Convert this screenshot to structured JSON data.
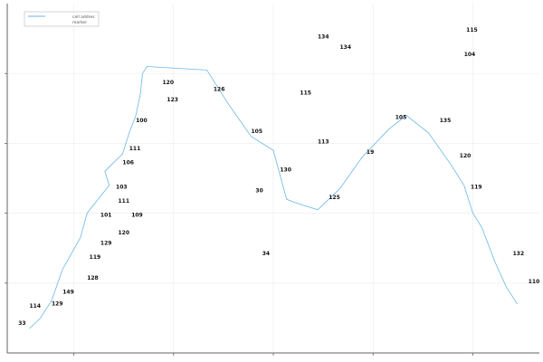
{
  "colors": {
    "series_line": "#6bb6e6",
    "marker_label": "#111111",
    "grid": "#ececec",
    "axis": "#666666",
    "legend_border": "#bbbbbb"
  },
  "legend": {
    "entries": [
      "cell addres",
      "marker"
    ],
    "placement": "top-left"
  },
  "chart_data": {
    "type": "line",
    "title": "",
    "xlabel": "",
    "ylabel": "",
    "xlim": [
      0,
      24
    ],
    "ylim": [
      0,
      50
    ],
    "x_ticks": [
      3,
      7.5,
      12,
      16.5,
      21
    ],
    "y_ticks": [
      10,
      20,
      30,
      40
    ],
    "tick_labels_visible": false,
    "grid": true,
    "series": [
      {
        "name": "cell addres",
        "points": [
          [
            1.0,
            3.5
          ],
          [
            1.5,
            5.0
          ],
          [
            2.0,
            7.5
          ],
          [
            2.5,
            12.0
          ],
          [
            3.3,
            16.5
          ],
          [
            3.6,
            20.0
          ],
          [
            4.1,
            22.0
          ],
          [
            4.6,
            24.0
          ],
          [
            4.4,
            26.0
          ],
          [
            5.2,
            28.5
          ],
          [
            5.5,
            31.5
          ],
          [
            5.8,
            34.0
          ],
          [
            6.0,
            37.0
          ],
          [
            6.1,
            40.0
          ],
          [
            6.3,
            41.0
          ],
          [
            9.0,
            40.5
          ],
          [
            10.0,
            35.5
          ],
          [
            11.0,
            31.0
          ],
          [
            12.0,
            29.0
          ],
          [
            12.6,
            22.0
          ],
          [
            13.0,
            21.5
          ],
          [
            14.0,
            20.5
          ],
          [
            15.0,
            23.5
          ],
          [
            16.0,
            28.0
          ],
          [
            17.2,
            32.0
          ],
          [
            18.0,
            34.0
          ],
          [
            19.0,
            31.5
          ],
          [
            20.0,
            27.0
          ],
          [
            20.6,
            24.0
          ],
          [
            21.0,
            20.0
          ],
          [
            21.4,
            18.0
          ],
          [
            22.0,
            13.0
          ],
          [
            22.5,
            9.5
          ],
          [
            23.0,
            7.0
          ]
        ],
        "markers": [
          {
            "label": "33",
            "x": 0.5,
            "y": 4.0
          },
          {
            "label": "114",
            "x": 1.0,
            "y": 6.5
          },
          {
            "label": "129",
            "x": 2.0,
            "y": 6.8
          },
          {
            "label": "149",
            "x": 2.5,
            "y": 8.5
          },
          {
            "label": "128",
            "x": 3.6,
            "y": 10.5
          },
          {
            "label": "119",
            "x": 3.7,
            "y": 13.5
          },
          {
            "label": "129",
            "x": 4.2,
            "y": 15.5
          },
          {
            "label": "120",
            "x": 5.0,
            "y": 17.0
          },
          {
            "label": "101",
            "x": 4.2,
            "y": 19.5
          },
          {
            "label": "109",
            "x": 5.6,
            "y": 19.5
          },
          {
            "label": "111",
            "x": 5.0,
            "y": 21.5
          },
          {
            "label": "103",
            "x": 4.9,
            "y": 23.5
          },
          {
            "label": "106",
            "x": 5.2,
            "y": 27.0
          },
          {
            "label": "111",
            "x": 5.5,
            "y": 29.0
          },
          {
            "label": "100",
            "x": 5.8,
            "y": 33.0
          },
          {
            "label": "123",
            "x": 7.2,
            "y": 36.0
          },
          {
            "label": "120",
            "x": 7.0,
            "y": 38.5
          },
          {
            "label": "126",
            "x": 9.3,
            "y": 37.5
          },
          {
            "label": "105",
            "x": 11.0,
            "y": 31.5
          },
          {
            "label": "30",
            "x": 11.2,
            "y": 23.0
          },
          {
            "label": "34",
            "x": 11.5,
            "y": 14.0
          },
          {
            "label": "130",
            "x": 12.3,
            "y": 26.0
          },
          {
            "label": "115",
            "x": 13.2,
            "y": 37.0
          },
          {
            "label": "134",
            "x": 14.0,
            "y": 45.0
          },
          {
            "label": "134",
            "x": 15.0,
            "y": 43.5
          },
          {
            "label": "113",
            "x": 14.0,
            "y": 30.0
          },
          {
            "label": "125",
            "x": 14.5,
            "y": 22.0
          },
          {
            "label": "19",
            "x": 16.2,
            "y": 28.5
          },
          {
            "label": "105",
            "x": 17.5,
            "y": 33.5
          },
          {
            "label": "135",
            "x": 19.5,
            "y": 33.0
          },
          {
            "label": "115",
            "x": 20.7,
            "y": 46.0
          },
          {
            "label": "104",
            "x": 20.6,
            "y": 42.5
          },
          {
            "label": "120",
            "x": 20.4,
            "y": 28.0
          },
          {
            "label": "119",
            "x": 20.9,
            "y": 23.5
          },
          {
            "label": "132",
            "x": 22.8,
            "y": 14.0
          },
          {
            "label": "110",
            "x": 23.5,
            "y": 10.0
          }
        ]
      },
      {
        "name": "marker",
        "points": []
      }
    ]
  }
}
